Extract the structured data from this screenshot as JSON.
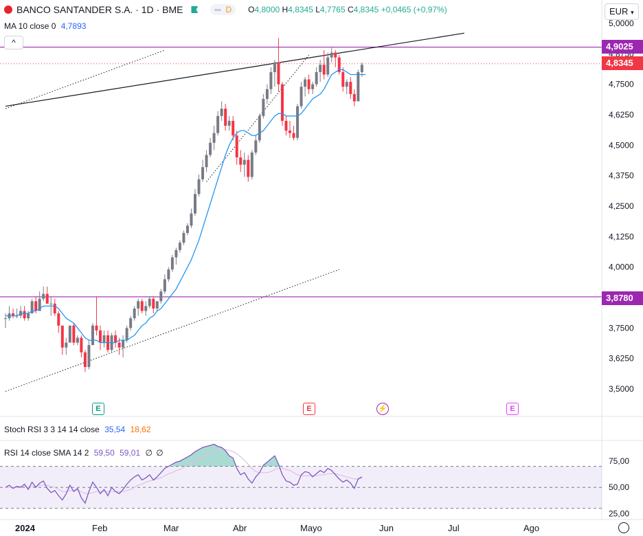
{
  "header": {
    "symbol_title": "BANCO SANTANDER S.A. · 1D · BME",
    "status_letter": "D",
    "ohlc": {
      "o_label": "O",
      "o": "4,8000",
      "h_label": "H",
      "h": "4,8345",
      "l_label": "L",
      "l": "4,7765",
      "c_label": "C",
      "c": "4,8345",
      "change": "+0,0465 (+0,97%)"
    },
    "ma_label": "MA 10 close 0",
    "ma_value": "4,7893",
    "currency": "EUR",
    "collapse_glyph": "^"
  },
  "indicators": {
    "stoch_label": "Stoch RSI 3 3 14 14 close",
    "stoch_k": "35,54",
    "stoch_d": "18,62",
    "rsi_label": "RSI 14 close SMA 14 2",
    "rsi_value": "59,50",
    "rsi_sma": "59,01",
    "rsi_extra1": "∅",
    "rsi_extra2": "∅"
  },
  "price_labels": {
    "upper": "4,9025",
    "last": "4,8345",
    "lower": "3,8780"
  },
  "events": [
    {
      "letter": "E",
      "color": "#089981",
      "icon": "earnings-icon"
    },
    {
      "letter": "E",
      "color": "#f23645",
      "icon": "earnings-icon"
    },
    {
      "letter": "⚡",
      "color": "#9c27b0",
      "icon": "split-icon"
    },
    {
      "letter": "E",
      "color": "#e040fb",
      "icon": "earnings-icon"
    }
  ],
  "colors": {
    "up": "#787b86",
    "down": "#f23645",
    "ma": "#2196f3",
    "hline": "#9c27b0",
    "rsi": "#7e57c2",
    "last": "#f23645"
  },
  "chart_data": [
    {
      "type": "candlestick",
      "title": "BANCO SANTANDER S.A. · 1D · BME",
      "y_ticks": [
        "3,5000",
        "3,6250",
        "3,7500",
        "3,8750",
        "4,0000",
        "4,1250",
        "4,2500",
        "4,3750",
        "4,5000",
        "4,6250",
        "4,7500",
        "4,8750",
        "5,0000"
      ],
      "x_ticks": [
        "2024",
        "Feb",
        "Mar",
        "Abr",
        "Mayo",
        "Jun",
        "Jul",
        "Ago"
      ],
      "ylim": [
        3.47,
        5.0
      ],
      "horizontal_levels": [
        4.9025,
        3.878
      ],
      "last_price": 4.8345,
      "candles": [
        {
          "o": 3.79,
          "h": 3.81,
          "l": 3.75,
          "c": 3.79
        },
        {
          "o": 3.79,
          "h": 3.84,
          "l": 3.78,
          "c": 3.81
        },
        {
          "o": 3.81,
          "h": 3.83,
          "l": 3.79,
          "c": 3.8
        },
        {
          "o": 3.8,
          "h": 3.83,
          "l": 3.79,
          "c": 3.8
        },
        {
          "o": 3.8,
          "h": 3.84,
          "l": 3.79,
          "c": 3.82
        },
        {
          "o": 3.82,
          "h": 3.84,
          "l": 3.78,
          "c": 3.79
        },
        {
          "o": 3.79,
          "h": 3.82,
          "l": 3.78,
          "c": 3.81
        },
        {
          "o": 3.81,
          "h": 3.87,
          "l": 3.81,
          "c": 3.86
        },
        {
          "o": 3.86,
          "h": 3.88,
          "l": 3.81,
          "c": 3.82
        },
        {
          "o": 3.82,
          "h": 3.9,
          "l": 3.82,
          "c": 3.87
        },
        {
          "o": 3.87,
          "h": 3.92,
          "l": 3.86,
          "c": 3.89
        },
        {
          "o": 3.89,
          "h": 3.92,
          "l": 3.85,
          "c": 3.85
        },
        {
          "o": 3.85,
          "h": 3.88,
          "l": 3.8,
          "c": 3.85
        },
        {
          "o": 3.85,
          "h": 3.87,
          "l": 3.8,
          "c": 3.81
        },
        {
          "o": 3.81,
          "h": 3.82,
          "l": 3.73,
          "c": 3.76
        },
        {
          "o": 3.76,
          "h": 3.76,
          "l": 3.64,
          "c": 3.67
        },
        {
          "o": 3.67,
          "h": 3.71,
          "l": 3.64,
          "c": 3.69
        },
        {
          "o": 3.69,
          "h": 3.76,
          "l": 3.69,
          "c": 3.76
        },
        {
          "o": 3.76,
          "h": 3.77,
          "l": 3.68,
          "c": 3.69
        },
        {
          "o": 3.69,
          "h": 3.72,
          "l": 3.68,
          "c": 3.71
        },
        {
          "o": 3.71,
          "h": 3.72,
          "l": 3.63,
          "c": 3.65
        },
        {
          "o": 3.65,
          "h": 3.66,
          "l": 3.57,
          "c": 3.59
        },
        {
          "o": 3.59,
          "h": 3.7,
          "l": 3.58,
          "c": 3.68
        },
        {
          "o": 3.68,
          "h": 3.77,
          "l": 3.68,
          "c": 3.76
        },
        {
          "o": 3.76,
          "h": 3.88,
          "l": 3.72,
          "c": 3.74
        },
        {
          "o": 3.74,
          "h": 3.76,
          "l": 3.66,
          "c": 3.69
        },
        {
          "o": 3.69,
          "h": 3.74,
          "l": 3.67,
          "c": 3.72
        },
        {
          "o": 3.72,
          "h": 3.74,
          "l": 3.65,
          "c": 3.66
        },
        {
          "o": 3.66,
          "h": 3.73,
          "l": 3.65,
          "c": 3.72
        },
        {
          "o": 3.72,
          "h": 3.74,
          "l": 3.67,
          "c": 3.69
        },
        {
          "o": 3.69,
          "h": 3.71,
          "l": 3.64,
          "c": 3.67
        },
        {
          "o": 3.67,
          "h": 3.72,
          "l": 3.63,
          "c": 3.7
        },
        {
          "o": 3.7,
          "h": 3.76,
          "l": 3.69,
          "c": 3.75
        },
        {
          "o": 3.75,
          "h": 3.8,
          "l": 3.74,
          "c": 3.79
        },
        {
          "o": 3.79,
          "h": 3.84,
          "l": 3.78,
          "c": 3.83
        },
        {
          "o": 3.83,
          "h": 3.87,
          "l": 3.8,
          "c": 3.86
        },
        {
          "o": 3.86,
          "h": 3.87,
          "l": 3.81,
          "c": 3.82
        },
        {
          "o": 3.82,
          "h": 3.86,
          "l": 3.8,
          "c": 3.84
        },
        {
          "o": 3.84,
          "h": 3.88,
          "l": 3.83,
          "c": 3.87
        },
        {
          "o": 3.87,
          "h": 3.88,
          "l": 3.81,
          "c": 3.83
        },
        {
          "o": 3.83,
          "h": 3.86,
          "l": 3.82,
          "c": 3.86
        },
        {
          "o": 3.86,
          "h": 3.91,
          "l": 3.85,
          "c": 3.9
        },
        {
          "o": 3.9,
          "h": 3.97,
          "l": 3.89,
          "c": 3.95
        },
        {
          "o": 3.95,
          "h": 4.0,
          "l": 3.94,
          "c": 3.99
        },
        {
          "o": 3.99,
          "h": 4.05,
          "l": 3.98,
          "c": 4.04
        },
        {
          "o": 4.04,
          "h": 4.08,
          "l": 4.01,
          "c": 4.07
        },
        {
          "o": 4.07,
          "h": 4.11,
          "l": 4.06,
          "c": 4.1
        },
        {
          "o": 4.1,
          "h": 4.15,
          "l": 4.09,
          "c": 4.14
        },
        {
          "o": 4.14,
          "h": 4.18,
          "l": 4.13,
          "c": 4.17
        },
        {
          "o": 4.17,
          "h": 4.24,
          "l": 4.16,
          "c": 4.22
        },
        {
          "o": 4.22,
          "h": 4.32,
          "l": 4.21,
          "c": 4.3
        },
        {
          "o": 4.3,
          "h": 4.38,
          "l": 4.29,
          "c": 4.36
        },
        {
          "o": 4.36,
          "h": 4.44,
          "l": 4.35,
          "c": 4.41
        },
        {
          "o": 4.41,
          "h": 4.48,
          "l": 4.39,
          "c": 4.46
        },
        {
          "o": 4.46,
          "h": 4.53,
          "l": 4.45,
          "c": 4.51
        },
        {
          "o": 4.51,
          "h": 4.58,
          "l": 4.48,
          "c": 4.55
        },
        {
          "o": 4.55,
          "h": 4.64,
          "l": 4.54,
          "c": 4.62
        },
        {
          "o": 4.62,
          "h": 4.68,
          "l": 4.6,
          "c": 4.65
        },
        {
          "o": 4.65,
          "h": 4.67,
          "l": 4.56,
          "c": 4.58
        },
        {
          "o": 4.58,
          "h": 4.62,
          "l": 4.56,
          "c": 4.6
        },
        {
          "o": 4.6,
          "h": 4.62,
          "l": 4.52,
          "c": 4.54
        },
        {
          "o": 4.54,
          "h": 4.56,
          "l": 4.42,
          "c": 4.45
        },
        {
          "o": 4.45,
          "h": 4.48,
          "l": 4.39,
          "c": 4.42
        },
        {
          "o": 4.42,
          "h": 4.47,
          "l": 4.37,
          "c": 4.44
        },
        {
          "o": 4.44,
          "h": 4.46,
          "l": 4.35,
          "c": 4.37
        },
        {
          "o": 4.37,
          "h": 4.48,
          "l": 4.36,
          "c": 4.47
        },
        {
          "o": 4.47,
          "h": 4.54,
          "l": 4.46,
          "c": 4.52
        },
        {
          "o": 4.52,
          "h": 4.63,
          "l": 4.51,
          "c": 4.62
        },
        {
          "o": 4.62,
          "h": 4.71,
          "l": 4.61,
          "c": 4.69
        },
        {
          "o": 4.69,
          "h": 4.75,
          "l": 4.67,
          "c": 4.73
        },
        {
          "o": 4.73,
          "h": 4.82,
          "l": 4.71,
          "c": 4.8
        },
        {
          "o": 4.8,
          "h": 4.85,
          "l": 4.74,
          "c": 4.84
        },
        {
          "o": 4.84,
          "h": 4.94,
          "l": 4.72,
          "c": 4.75
        },
        {
          "o": 4.75,
          "h": 4.76,
          "l": 4.58,
          "c": 4.6
        },
        {
          "o": 4.6,
          "h": 4.62,
          "l": 4.54,
          "c": 4.56
        },
        {
          "o": 4.56,
          "h": 4.6,
          "l": 4.53,
          "c": 4.55
        },
        {
          "o": 4.55,
          "h": 4.58,
          "l": 4.52,
          "c": 4.53
        },
        {
          "o": 4.53,
          "h": 4.67,
          "l": 4.52,
          "c": 4.66
        },
        {
          "o": 4.66,
          "h": 4.76,
          "l": 4.65,
          "c": 4.74
        },
        {
          "o": 4.74,
          "h": 4.78,
          "l": 4.7,
          "c": 4.77
        },
        {
          "o": 4.77,
          "h": 4.79,
          "l": 4.71,
          "c": 4.73
        },
        {
          "o": 4.73,
          "h": 4.76,
          "l": 4.71,
          "c": 4.75
        },
        {
          "o": 4.75,
          "h": 4.82,
          "l": 4.74,
          "c": 4.8
        },
        {
          "o": 4.8,
          "h": 4.85,
          "l": 4.76,
          "c": 4.83
        },
        {
          "o": 4.83,
          "h": 4.89,
          "l": 4.77,
          "c": 4.79
        },
        {
          "o": 4.79,
          "h": 4.88,
          "l": 4.78,
          "c": 4.86
        },
        {
          "o": 4.86,
          "h": 4.9,
          "l": 4.84,
          "c": 4.88
        },
        {
          "o": 4.88,
          "h": 4.89,
          "l": 4.82,
          "c": 4.86
        },
        {
          "o": 4.86,
          "h": 4.87,
          "l": 4.79,
          "c": 4.8
        },
        {
          "o": 4.8,
          "h": 4.82,
          "l": 4.72,
          "c": 4.74
        },
        {
          "o": 4.74,
          "h": 4.77,
          "l": 4.71,
          "c": 4.76
        },
        {
          "o": 4.76,
          "h": 4.78,
          "l": 4.69,
          "c": 4.71
        },
        {
          "o": 4.71,
          "h": 4.73,
          "l": 4.66,
          "c": 4.68
        },
        {
          "o": 4.68,
          "h": 4.81,
          "l": 4.68,
          "c": 4.8
        },
        {
          "o": 4.8,
          "h": 4.84,
          "l": 4.78,
          "c": 4.83
        }
      ],
      "ma10": [
        3.8,
        3.8,
        3.8,
        3.8,
        3.81,
        3.81,
        3.81,
        3.82,
        3.82,
        3.83,
        3.84,
        3.84,
        3.84,
        3.84,
        3.83,
        3.81,
        3.79,
        3.78,
        3.77,
        3.75,
        3.73,
        3.71,
        3.7,
        3.7,
        3.7,
        3.69,
        3.69,
        3.69,
        3.69,
        3.69,
        3.7,
        3.7,
        3.7,
        3.71,
        3.72,
        3.74,
        3.76,
        3.77,
        3.79,
        3.8,
        3.82,
        3.83,
        3.85,
        3.87,
        3.89,
        3.91,
        3.94,
        3.97,
        4.0,
        4.03,
        4.07,
        4.11,
        4.16,
        4.21,
        4.26,
        4.31,
        4.36,
        4.41,
        4.46,
        4.5,
        4.53,
        4.55,
        4.56,
        4.56,
        4.55,
        4.54,
        4.54,
        4.55,
        4.56,
        4.58,
        4.6,
        4.62,
        4.63,
        4.63,
        4.62,
        4.62,
        4.62,
        4.62,
        4.63,
        4.65,
        4.67,
        4.69,
        4.7,
        4.71,
        4.73,
        4.76,
        4.79,
        4.8,
        4.81,
        4.81,
        4.8,
        4.79,
        4.79,
        4.79,
        4.79,
        4.79
      ],
      "trendlines": [
        {
          "style": "solid",
          "from": [
            0,
            4.66
          ],
          "to": [
            121,
            4.96
          ]
        },
        {
          "style": "dotted",
          "from": [
            0,
            4.65
          ],
          "to": [
            42,
            4.89
          ]
        },
        {
          "style": "dotted",
          "from": [
            0,
            3.49
          ],
          "to": [
            88,
            3.99
          ]
        },
        {
          "style": "dotted",
          "from": [
            53,
            4.35
          ],
          "to": [
            80,
            4.87
          ]
        }
      ]
    },
    {
      "type": "line",
      "title": "RSI 14 close SMA 14 2",
      "y_ticks": [
        "25,00",
        "50,00",
        "75,00"
      ],
      "ylim": [
        22,
        92
      ],
      "bands": [
        70,
        50,
        30
      ],
      "rsi": [
        50,
        52,
        49,
        51,
        50,
        53,
        48,
        55,
        50,
        54,
        56,
        49,
        45,
        47,
        42,
        38,
        44,
        52,
        46,
        49,
        40,
        35,
        46,
        55,
        50,
        44,
        48,
        42,
        50,
        46,
        44,
        48,
        53,
        57,
        60,
        62,
        57,
        59,
        62,
        57,
        60,
        64,
        68,
        70,
        72,
        74,
        75,
        77,
        79,
        81,
        84,
        86,
        88,
        89,
        90,
        91,
        89,
        88,
        85,
        80,
        78,
        68,
        62,
        64,
        58,
        54,
        60,
        64,
        71,
        74,
        77,
        80,
        72,
        62,
        56,
        55,
        52,
        53,
        62,
        65,
        64,
        60,
        63,
        66,
        64,
        68,
        66,
        62,
        58,
        55,
        57,
        54,
        49,
        58,
        60
      ],
      "rsi_sma": [
        50,
        50,
        50,
        50,
        51,
        51,
        50,
        51,
        51,
        52,
        52,
        52,
        51,
        50,
        48,
        46,
        46,
        47,
        47,
        47,
        46,
        44,
        44,
        45,
        46,
        46,
        46,
        46,
        46,
        46,
        46,
        46,
        47,
        48,
        50,
        52,
        53,
        55,
        56,
        57,
        58,
        59,
        61,
        63,
        64,
        66,
        67,
        69,
        71,
        73,
        75,
        77,
        79,
        81,
        83,
        84,
        85,
        86,
        86,
        85,
        84,
        82,
        79,
        76,
        72,
        68,
        65,
        64,
        64,
        64,
        65,
        67,
        68,
        68,
        67,
        66,
        64,
        62,
        61,
        61,
        61,
        61,
        61,
        62,
        62,
        63,
        63,
        63,
        62,
        61,
        60,
        59,
        58,
        58,
        59
      ]
    }
  ]
}
